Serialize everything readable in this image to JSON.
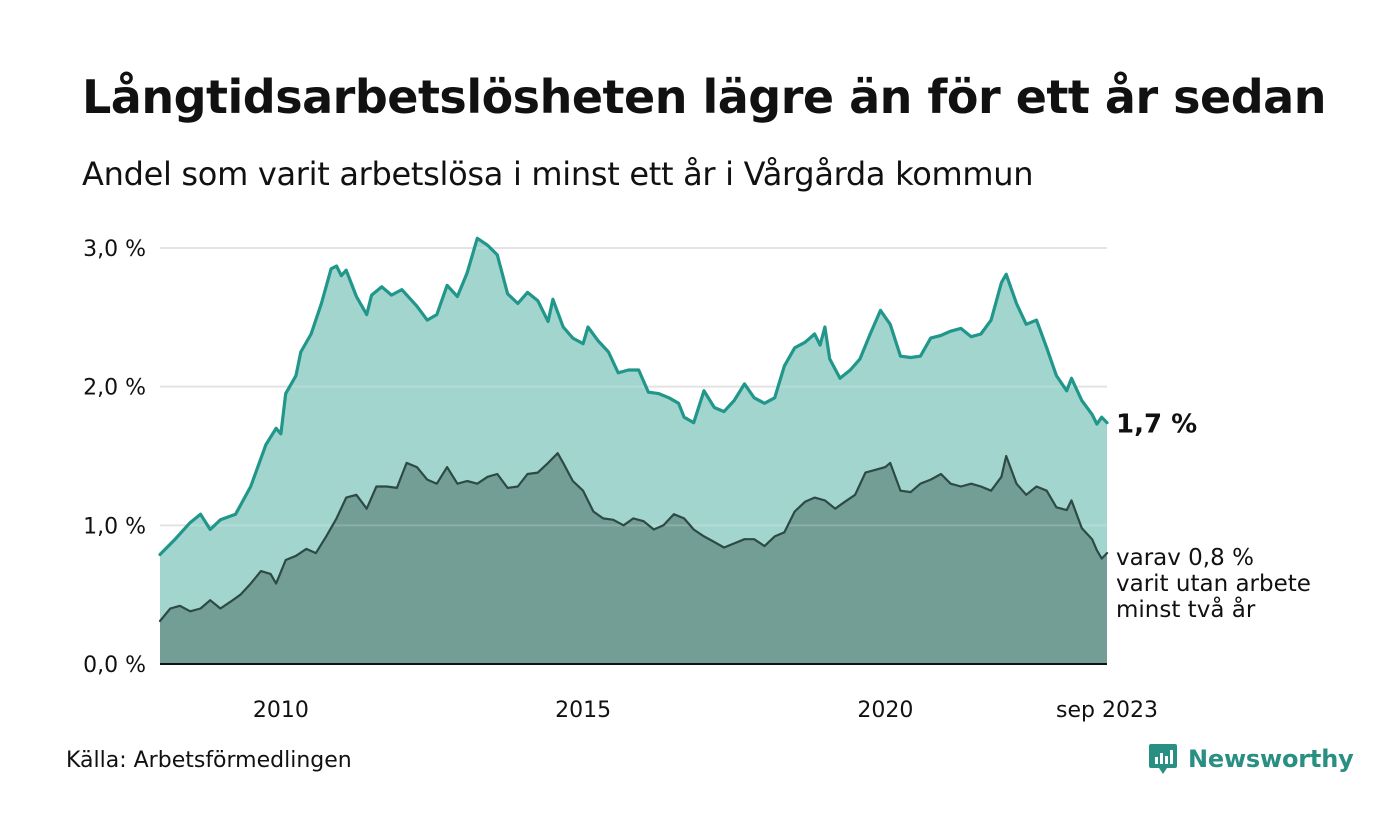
{
  "header": {
    "title": "Långtidsarbetslösheten lägre än för ett år sedan",
    "subtitle": "Andel som varit arbetslösa i minst ett år i Vårgårda kommun"
  },
  "footer": {
    "source": "Källa: Arbetsförmedlingen",
    "brand": "Newsworthy"
  },
  "colors": {
    "series_total_line": "#21968a",
    "series_total_fill": "#a3d5cf",
    "series_two_year_line": "#2d4a44",
    "series_two_year_fill": "#739e96",
    "grid": "#dddddd",
    "baseline": "#111111",
    "brand": "#2a8f83"
  },
  "chart_data": {
    "type": "area",
    "title": "Långtidsarbetslösheten lägre än för ett år sedan",
    "subtitle": "Andel som varit arbetslösa i minst ett år i Vårgårda kommun",
    "xlabel": "",
    "ylabel": "",
    "x_range": [
      2008.0,
      2023.667
    ],
    "ylim": [
      0,
      3.0
    ],
    "y_ticks": [
      0,
      1,
      2,
      3
    ],
    "y_tick_labels": [
      "0,0 %",
      "1,0 %",
      "2,0 %",
      "3,0 %"
    ],
    "x_ticks": [
      2010,
      2015,
      2020,
      2023.667
    ],
    "x_tick_labels": [
      "2010",
      "2015",
      "2020",
      "sep 2023"
    ],
    "grid": true,
    "legend": "none; series labelled at right end",
    "annotations": {
      "total_end": "1,7 %",
      "two_year_end": [
        "varav 0,8 %",
        "varit utan arbete",
        "minst två år"
      ]
    },
    "series": [
      {
        "name": "Arbetslösa minst ett år",
        "points": [
          [
            2008.0,
            0.79
          ],
          [
            2008.25,
            0.9
          ],
          [
            2008.5,
            1.02
          ],
          [
            2008.67,
            1.08
          ],
          [
            2008.83,
            0.97
          ],
          [
            2009.0,
            1.04
          ],
          [
            2009.25,
            1.08
          ],
          [
            2009.5,
            1.28
          ],
          [
            2009.75,
            1.58
          ],
          [
            2009.92,
            1.7
          ],
          [
            2010.0,
            1.66
          ],
          [
            2010.08,
            1.95
          ],
          [
            2010.25,
            2.08
          ],
          [
            2010.33,
            2.25
          ],
          [
            2010.5,
            2.38
          ],
          [
            2010.67,
            2.6
          ],
          [
            2010.83,
            2.85
          ],
          [
            2010.92,
            2.87
          ],
          [
            2011.0,
            2.8
          ],
          [
            2011.08,
            2.84
          ],
          [
            2011.25,
            2.65
          ],
          [
            2011.42,
            2.52
          ],
          [
            2011.5,
            2.66
          ],
          [
            2011.67,
            2.72
          ],
          [
            2011.83,
            2.66
          ],
          [
            2012.0,
            2.7
          ],
          [
            2012.25,
            2.58
          ],
          [
            2012.42,
            2.48
          ],
          [
            2012.58,
            2.52
          ],
          [
            2012.75,
            2.73
          ],
          [
            2012.92,
            2.65
          ],
          [
            2013.08,
            2.82
          ],
          [
            2013.25,
            3.07
          ],
          [
            2013.42,
            3.02
          ],
          [
            2013.58,
            2.95
          ],
          [
            2013.75,
            2.67
          ],
          [
            2013.92,
            2.6
          ],
          [
            2014.08,
            2.68
          ],
          [
            2014.25,
            2.62
          ],
          [
            2014.42,
            2.47
          ],
          [
            2014.5,
            2.63
          ],
          [
            2014.67,
            2.43
          ],
          [
            2014.83,
            2.35
          ],
          [
            2015.0,
            2.31
          ],
          [
            2015.08,
            2.43
          ],
          [
            2015.25,
            2.33
          ],
          [
            2015.42,
            2.25
          ],
          [
            2015.58,
            2.1
          ],
          [
            2015.75,
            2.12
          ],
          [
            2015.92,
            2.12
          ],
          [
            2016.08,
            1.96
          ],
          [
            2016.25,
            1.95
          ],
          [
            2016.42,
            1.92
          ],
          [
            2016.58,
            1.88
          ],
          [
            2016.67,
            1.78
          ],
          [
            2016.83,
            1.74
          ],
          [
            2017.0,
            1.97
          ],
          [
            2017.17,
            1.85
          ],
          [
            2017.33,
            1.82
          ],
          [
            2017.5,
            1.9
          ],
          [
            2017.67,
            2.02
          ],
          [
            2017.83,
            1.92
          ],
          [
            2018.0,
            1.88
          ],
          [
            2018.17,
            1.92
          ],
          [
            2018.33,
            2.15
          ],
          [
            2018.5,
            2.28
          ],
          [
            2018.67,
            2.32
          ],
          [
            2018.83,
            2.38
          ],
          [
            2018.92,
            2.3
          ],
          [
            2019.0,
            2.43
          ],
          [
            2019.08,
            2.2
          ],
          [
            2019.25,
            2.06
          ],
          [
            2019.42,
            2.12
          ],
          [
            2019.58,
            2.2
          ],
          [
            2019.75,
            2.38
          ],
          [
            2019.92,
            2.55
          ],
          [
            2020.08,
            2.45
          ],
          [
            2020.25,
            2.22
          ],
          [
            2020.42,
            2.21
          ],
          [
            2020.58,
            2.22
          ],
          [
            2020.75,
            2.35
          ],
          [
            2020.92,
            2.37
          ],
          [
            2021.08,
            2.4
          ],
          [
            2021.25,
            2.42
          ],
          [
            2021.42,
            2.36
          ],
          [
            2021.58,
            2.38
          ],
          [
            2021.75,
            2.48
          ],
          [
            2021.92,
            2.75
          ],
          [
            2022.0,
            2.81
          ],
          [
            2022.17,
            2.6
          ],
          [
            2022.33,
            2.45
          ],
          [
            2022.5,
            2.48
          ],
          [
            2022.67,
            2.28
          ],
          [
            2022.83,
            2.08
          ],
          [
            2023.0,
            1.97
          ],
          [
            2023.08,
            2.06
          ],
          [
            2023.25,
            1.9
          ],
          [
            2023.42,
            1.8
          ],
          [
            2023.5,
            1.73
          ],
          [
            2023.58,
            1.78
          ],
          [
            2023.667,
            1.74
          ]
        ]
      },
      {
        "name": "varav utan arbete minst två år",
        "points": [
          [
            2008.0,
            0.31
          ],
          [
            2008.17,
            0.4
          ],
          [
            2008.33,
            0.42
          ],
          [
            2008.5,
            0.38
          ],
          [
            2008.67,
            0.4
          ],
          [
            2008.83,
            0.46
          ],
          [
            2009.0,
            0.4
          ],
          [
            2009.17,
            0.45
          ],
          [
            2009.33,
            0.5
          ],
          [
            2009.5,
            0.58
          ],
          [
            2009.67,
            0.67
          ],
          [
            2009.83,
            0.65
          ],
          [
            2009.92,
            0.58
          ],
          [
            2010.08,
            0.75
          ],
          [
            2010.25,
            0.78
          ],
          [
            2010.42,
            0.83
          ],
          [
            2010.58,
            0.8
          ],
          [
            2010.75,
            0.92
          ],
          [
            2010.92,
            1.05
          ],
          [
            2011.08,
            1.2
          ],
          [
            2011.25,
            1.22
          ],
          [
            2011.42,
            1.12
          ],
          [
            2011.58,
            1.28
          ],
          [
            2011.75,
            1.28
          ],
          [
            2011.92,
            1.27
          ],
          [
            2012.08,
            1.45
          ],
          [
            2012.25,
            1.42
          ],
          [
            2012.42,
            1.33
          ],
          [
            2012.58,
            1.3
          ],
          [
            2012.75,
            1.42
          ],
          [
            2012.92,
            1.3
          ],
          [
            2013.08,
            1.32
          ],
          [
            2013.25,
            1.3
          ],
          [
            2013.42,
            1.35
          ],
          [
            2013.58,
            1.37
          ],
          [
            2013.75,
            1.27
          ],
          [
            2013.92,
            1.28
          ],
          [
            2014.08,
            1.37
          ],
          [
            2014.25,
            1.38
          ],
          [
            2014.42,
            1.45
          ],
          [
            2014.58,
            1.52
          ],
          [
            2014.67,
            1.45
          ],
          [
            2014.83,
            1.32
          ],
          [
            2015.0,
            1.25
          ],
          [
            2015.17,
            1.1
          ],
          [
            2015.33,
            1.05
          ],
          [
            2015.5,
            1.04
          ],
          [
            2015.67,
            1.0
          ],
          [
            2015.83,
            1.05
          ],
          [
            2016.0,
            1.03
          ],
          [
            2016.17,
            0.97
          ],
          [
            2016.33,
            1.0
          ],
          [
            2016.5,
            1.08
          ],
          [
            2016.67,
            1.05
          ],
          [
            2016.83,
            0.97
          ],
          [
            2017.0,
            0.92
          ],
          [
            2017.17,
            0.88
          ],
          [
            2017.33,
            0.84
          ],
          [
            2017.5,
            0.87
          ],
          [
            2017.67,
            0.9
          ],
          [
            2017.83,
            0.9
          ],
          [
            2018.0,
            0.85
          ],
          [
            2018.17,
            0.92
          ],
          [
            2018.33,
            0.95
          ],
          [
            2018.5,
            1.1
          ],
          [
            2018.67,
            1.17
          ],
          [
            2018.83,
            1.2
          ],
          [
            2019.0,
            1.18
          ],
          [
            2019.17,
            1.12
          ],
          [
            2019.33,
            1.17
          ],
          [
            2019.5,
            1.22
          ],
          [
            2019.67,
            1.38
          ],
          [
            2019.83,
            1.4
          ],
          [
            2020.0,
            1.42
          ],
          [
            2020.08,
            1.45
          ],
          [
            2020.25,
            1.25
          ],
          [
            2020.42,
            1.24
          ],
          [
            2020.58,
            1.3
          ],
          [
            2020.75,
            1.33
          ],
          [
            2020.92,
            1.37
          ],
          [
            2021.08,
            1.3
          ],
          [
            2021.25,
            1.28
          ],
          [
            2021.42,
            1.3
          ],
          [
            2021.58,
            1.28
          ],
          [
            2021.75,
            1.25
          ],
          [
            2021.92,
            1.35
          ],
          [
            2022.0,
            1.5
          ],
          [
            2022.17,
            1.3
          ],
          [
            2022.33,
            1.22
          ],
          [
            2022.5,
            1.28
          ],
          [
            2022.67,
            1.25
          ],
          [
            2022.83,
            1.13
          ],
          [
            2023.0,
            1.11
          ],
          [
            2023.08,
            1.18
          ],
          [
            2023.25,
            0.98
          ],
          [
            2023.42,
            0.9
          ],
          [
            2023.5,
            0.82
          ],
          [
            2023.58,
            0.76
          ],
          [
            2023.667,
            0.8
          ]
        ]
      }
    ]
  }
}
